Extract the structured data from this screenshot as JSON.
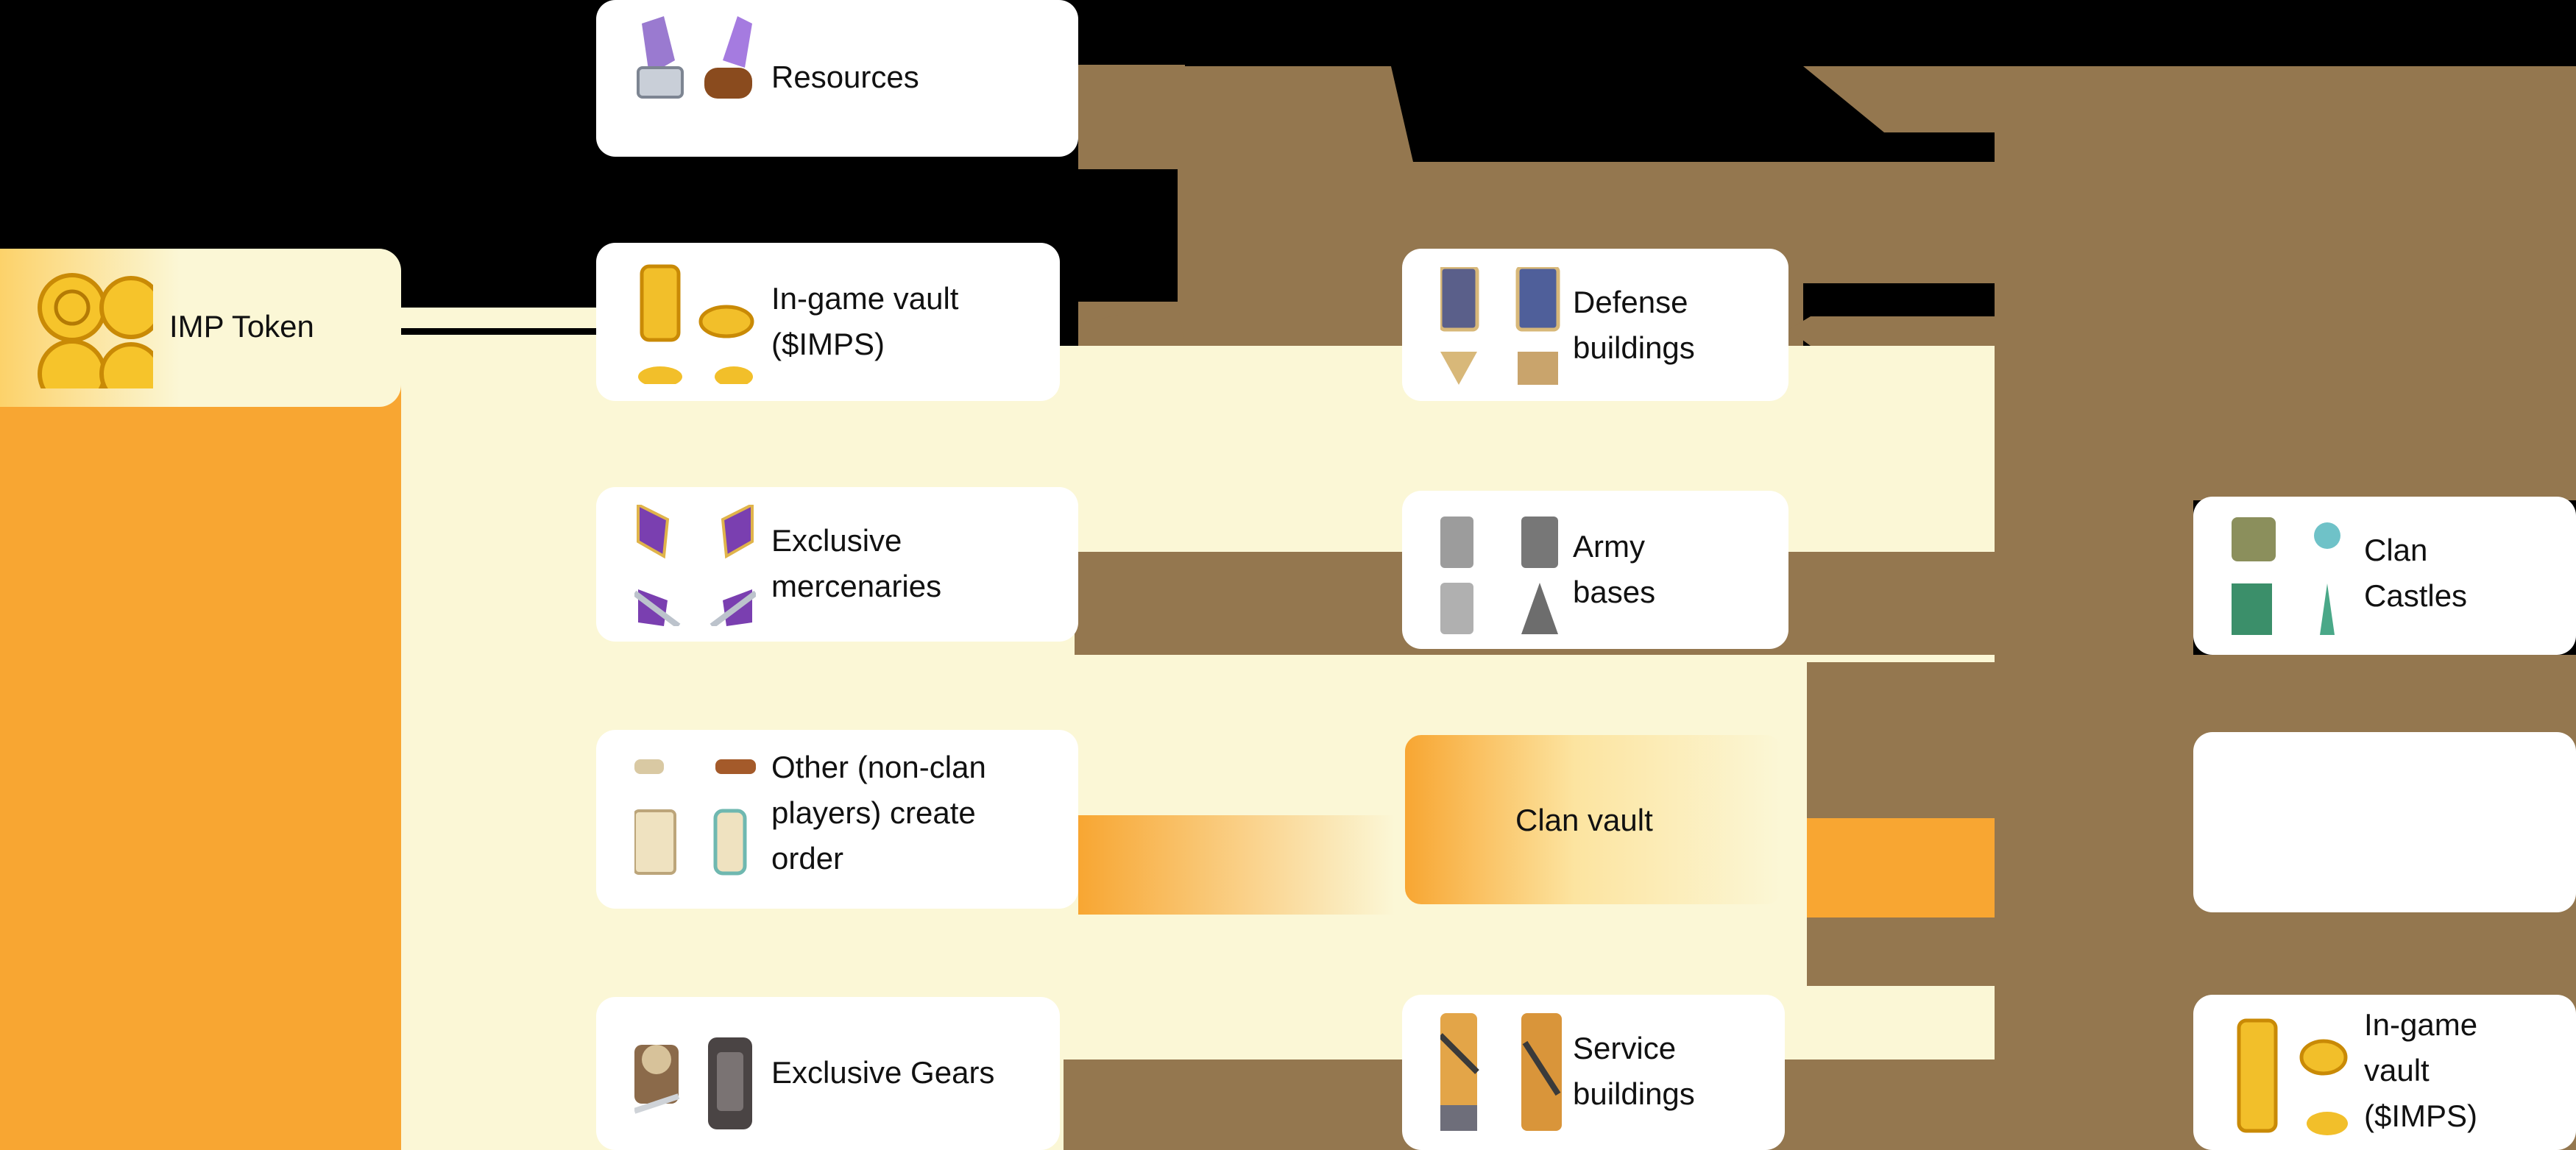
{
  "colors": {
    "background": "#000000",
    "card": "#ffffff",
    "connector": "#94774f",
    "cream": "#fbf7d6",
    "gold": "#f8a632",
    "gold_light": "#fcd26a"
  },
  "nodes": {
    "imp_token": {
      "label": "IMP Token",
      "icon": "gold-coins-icon"
    },
    "resources": {
      "label": "Resources",
      "icon": "ingot-and-log-icon"
    },
    "vault_left": {
      "label": "In-game vault\n($IMPS)",
      "icon": "gold-coin-stack-icon"
    },
    "mercenaries": {
      "label": "Exclusive\nmercenaries",
      "icon": "shield-swords-icon"
    },
    "order": {
      "label": "Other (non-clan\nplayers) create\norder",
      "icon": "scroll-icon"
    },
    "gears": {
      "label": "Exclusive Gears",
      "icon": "armor-helmet-icon"
    },
    "defense": {
      "label": "Defense\nbuildings",
      "icon": "tower-icon"
    },
    "army": {
      "label": "Army\nbases",
      "icon": "fortress-icon"
    },
    "clan_vault": {
      "label": "Clan vault"
    },
    "service": {
      "label": "Service\nbuildings",
      "icon": "workshop-icon"
    },
    "clan_castles": {
      "label": "Clan\nCastles",
      "icon": "castle-icon"
    },
    "blank_box": {
      "label": ""
    },
    "vault_right": {
      "label": "In-game\nvault\n($IMPS)",
      "icon": "gold-coin-stack-icon"
    }
  }
}
